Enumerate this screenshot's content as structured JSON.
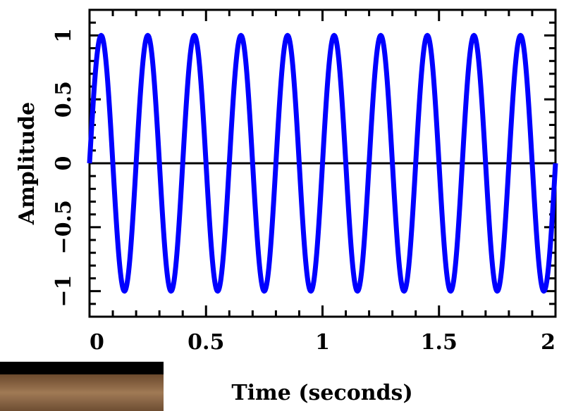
{
  "chart_data": {
    "type": "line",
    "title": "",
    "xlabel": "Time (seconds)",
    "ylabel": "Amplitude",
    "xlim": [
      0,
      2
    ],
    "ylim": [
      -1.2,
      1.2
    ],
    "x_ticks": [
      0,
      0.5,
      1,
      1.5,
      2
    ],
    "x_tick_labels": [
      "0",
      "0.5",
      "1",
      "1.5",
      "2"
    ],
    "y_ticks": [
      -1,
      -0.5,
      0,
      0.5,
      1
    ],
    "y_tick_labels": [
      "−1",
      "−0.5",
      "0",
      "0.5",
      "1"
    ],
    "grid": false,
    "zero_line": true,
    "series": [
      {
        "function": "sine",
        "amplitude": 1,
        "frequency_hz": 5,
        "phase": 0,
        "color": "#0000ff"
      }
    ],
    "axis_color": "#000000"
  },
  "image": {
    "wood_color": "#8a6544"
  }
}
